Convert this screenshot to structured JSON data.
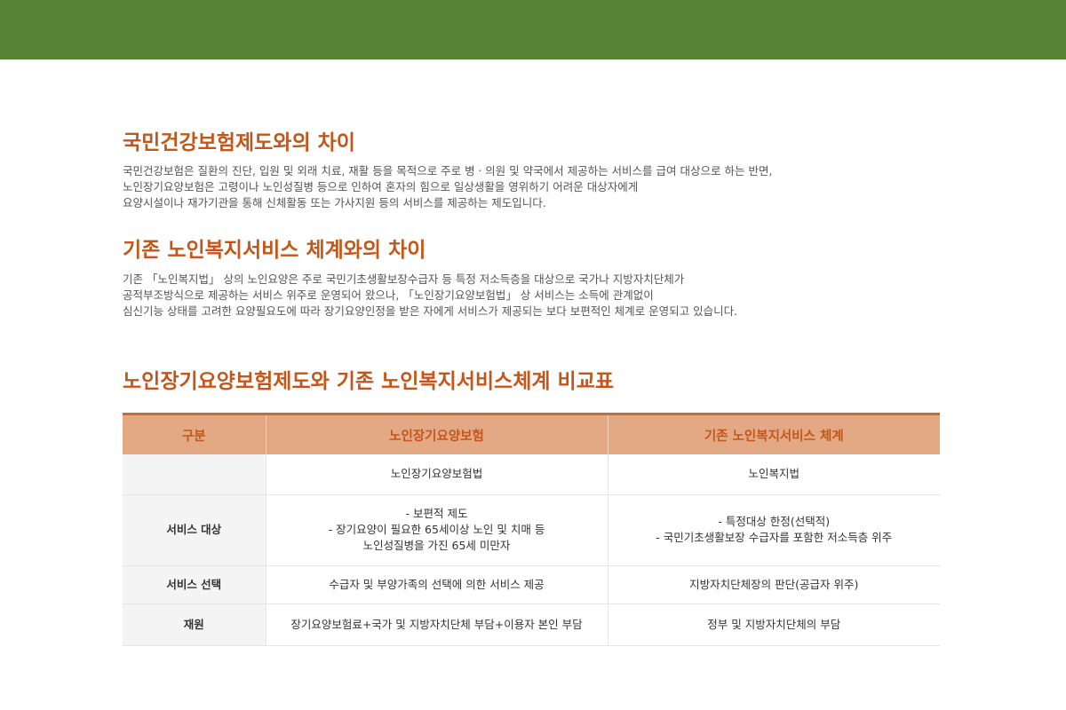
{
  "colors": {
    "topbar": "#568234",
    "heading": "#c3571b",
    "table_header_bg": "#e3a884",
    "table_header_text": "#c3571b"
  },
  "section1": {
    "title": "국민건강보험제도와의 차이",
    "lines": [
      "국민건강보험은 질환의 진단, 입원 및 외래 치료, 재활 등을 목적으로 주로 병ㆍ의원 및 약국에서 제공하는 서비스를 급여 대상으로 하는 반면,",
      "노인장기요양보험은 고령이나 노인성질병 등으로 인하여 혼자의 힘으로 일상생활을 영위하기 어려운 대상자에게",
      "요양시설이나 재가기관을 통해 신체활동 또는 가사지원 등의 서비스를 제공하는 제도입니다."
    ]
  },
  "section2": {
    "title": "기존 노인복지서비스 체계와의 차이",
    "lines": [
      "기존 「노인복지법」 상의 노인요양은 주로 국민기초생활보장수급자 등 특정 저소득층을 대상으로 국가나 지방자치단체가",
      "공적부조방식으로 제공하는 서비스 위주로 운영되어 왔으나, 「노인장기요양보험법」 상 서비스는 소득에 관계없이",
      "심신기능 상태를 고려한 요양필요도에 따라 장기요양인정을 받은 자에게 서비스가 제공되는 보다 보편적인 체계로 운영되고 있습니다."
    ]
  },
  "section3": {
    "title": "노인장기요양보험제도와 기존 노인복지서비스체계 비교표"
  },
  "table": {
    "headers": [
      "구분",
      "노인장기요양보험",
      "기존 노인복지서비스 체계"
    ],
    "rows": [
      {
        "label": "",
        "col1": [
          "노인장기요양보험법"
        ],
        "col2": [
          "노인복지법"
        ]
      },
      {
        "label": "서비스 대상",
        "col1": [
          "- 보편적 제도",
          "- 장기요양이 필요한 65세이상 노인 및 치매 등",
          "노인성질병을 가진 65세 미만자"
        ],
        "col2": [
          "- 특정대상 한정(선택적)",
          "- 국민기초생활보장 수급자를 포함한 저소득층 위주"
        ]
      },
      {
        "label": "서비스 선택",
        "col1": [
          "수급자 및 부양가족의 선택에 의한 서비스 제공"
        ],
        "col2": [
          "지방자치단체장의 판단(공급자 위주)"
        ]
      },
      {
        "label": "재원",
        "col1": [
          "장기요양보험료+국가 및 지방자치단체 부담+이용자 본인 부담"
        ],
        "col2": [
          "정부 및 지방자치단체의 부담"
        ]
      }
    ]
  }
}
